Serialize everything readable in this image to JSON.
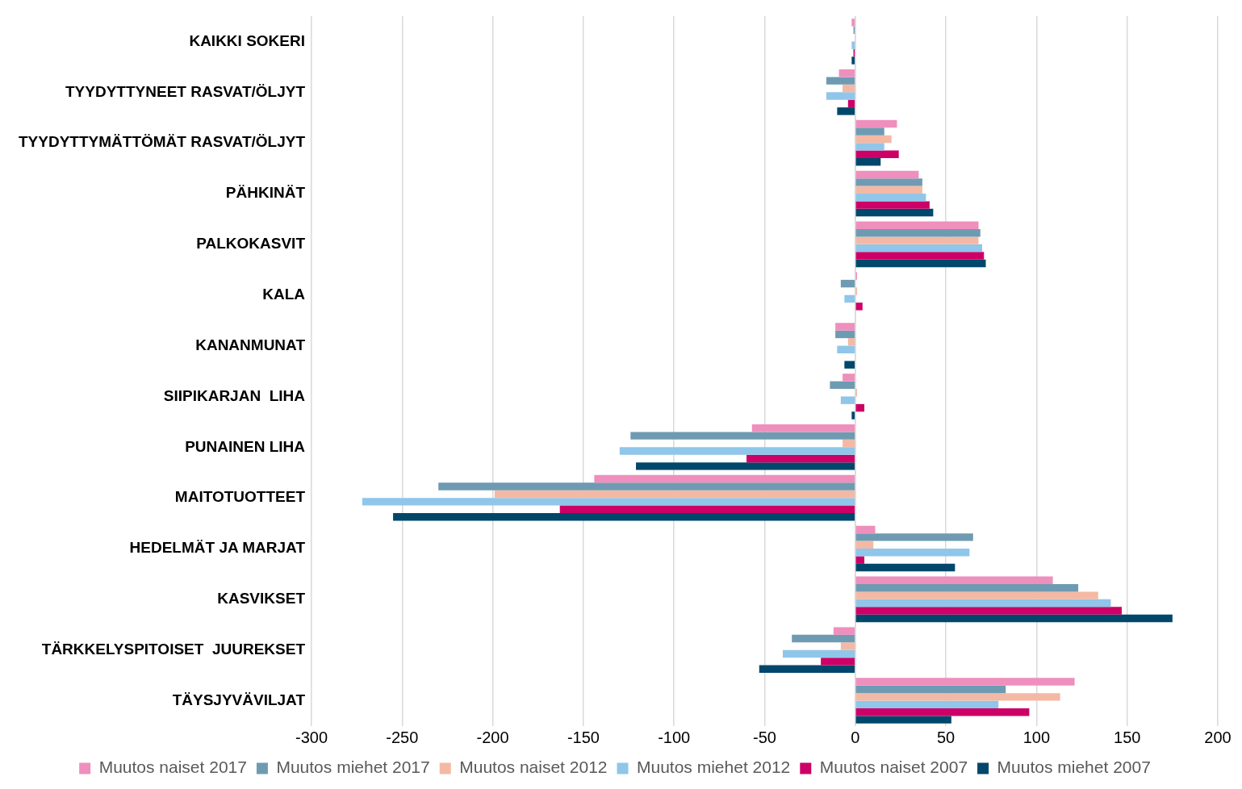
{
  "chart_data": {
    "type": "bar",
    "orientation": "horizontal",
    "categories": [
      "KAIKKI SOKERI",
      "TYYDYTTYNEET RASVAT/ÖLJYT",
      "TYYDYTTYMÄTTÖMÄT RASVAT/ÖLJYT",
      "PÄHKINÄT",
      "PALKOKASVIT",
      "KALA",
      "KANANMUNAT",
      "SIIPIKARJAN  LIHA",
      "PUNAINEN LIHA",
      "MAITOTUOTTEET",
      "HEDELMÄT JA MARJAT",
      "KASVIKSET",
      "TÄRKKELYSPITOISET  JUUREKSET",
      "TÄYSJYVÄVILJAT"
    ],
    "series": [
      {
        "name": "Muutos naiset 2017",
        "color": "#ee8fbd",
        "values": [
          -2,
          -9,
          23,
          35,
          68,
          1,
          -11,
          -7,
          -57,
          -144,
          11,
          109,
          -12,
          121
        ]
      },
      {
        "name": "Muutos miehet 2017",
        "color": "#6f9bb2",
        "values": [
          -1,
          -16,
          16,
          37,
          69,
          -8,
          -11,
          -14,
          -124,
          -230,
          65,
          123,
          -35,
          83
        ]
      },
      {
        "name": "Muutos naiset 2012",
        "color": "#f4b9a4",
        "values": [
          0,
          -7,
          20,
          37,
          68,
          1,
          -4,
          1,
          -7,
          -199,
          10,
          134,
          -8,
          113
        ]
      },
      {
        "name": "Muutos miehet 2012",
        "color": "#8fc6ea",
        "values": [
          -2,
          -16,
          16,
          39,
          70,
          -6,
          -10,
          -8,
          -130,
          -272,
          63,
          141,
          -40,
          79
        ]
      },
      {
        "name": "Muutos naiset 2007",
        "color": "#cc0066",
        "values": [
          -1,
          -4,
          24,
          41,
          71,
          4,
          0,
          5,
          -60,
          -163,
          5,
          147,
          -19,
          96
        ]
      },
      {
        "name": "Muutos miehet 2007",
        "color": "#00476b",
        "values": [
          -2,
          -10,
          14,
          43,
          72,
          0,
          -6,
          -2,
          -121,
          -255,
          55,
          175,
          -53,
          53
        ]
      }
    ],
    "xlim": [
      -300,
      200
    ],
    "xticks": [
      -300,
      -250,
      -200,
      -150,
      -100,
      -50,
      0,
      50,
      100,
      150,
      200
    ],
    "grid": "x",
    "legend": "bottom"
  }
}
